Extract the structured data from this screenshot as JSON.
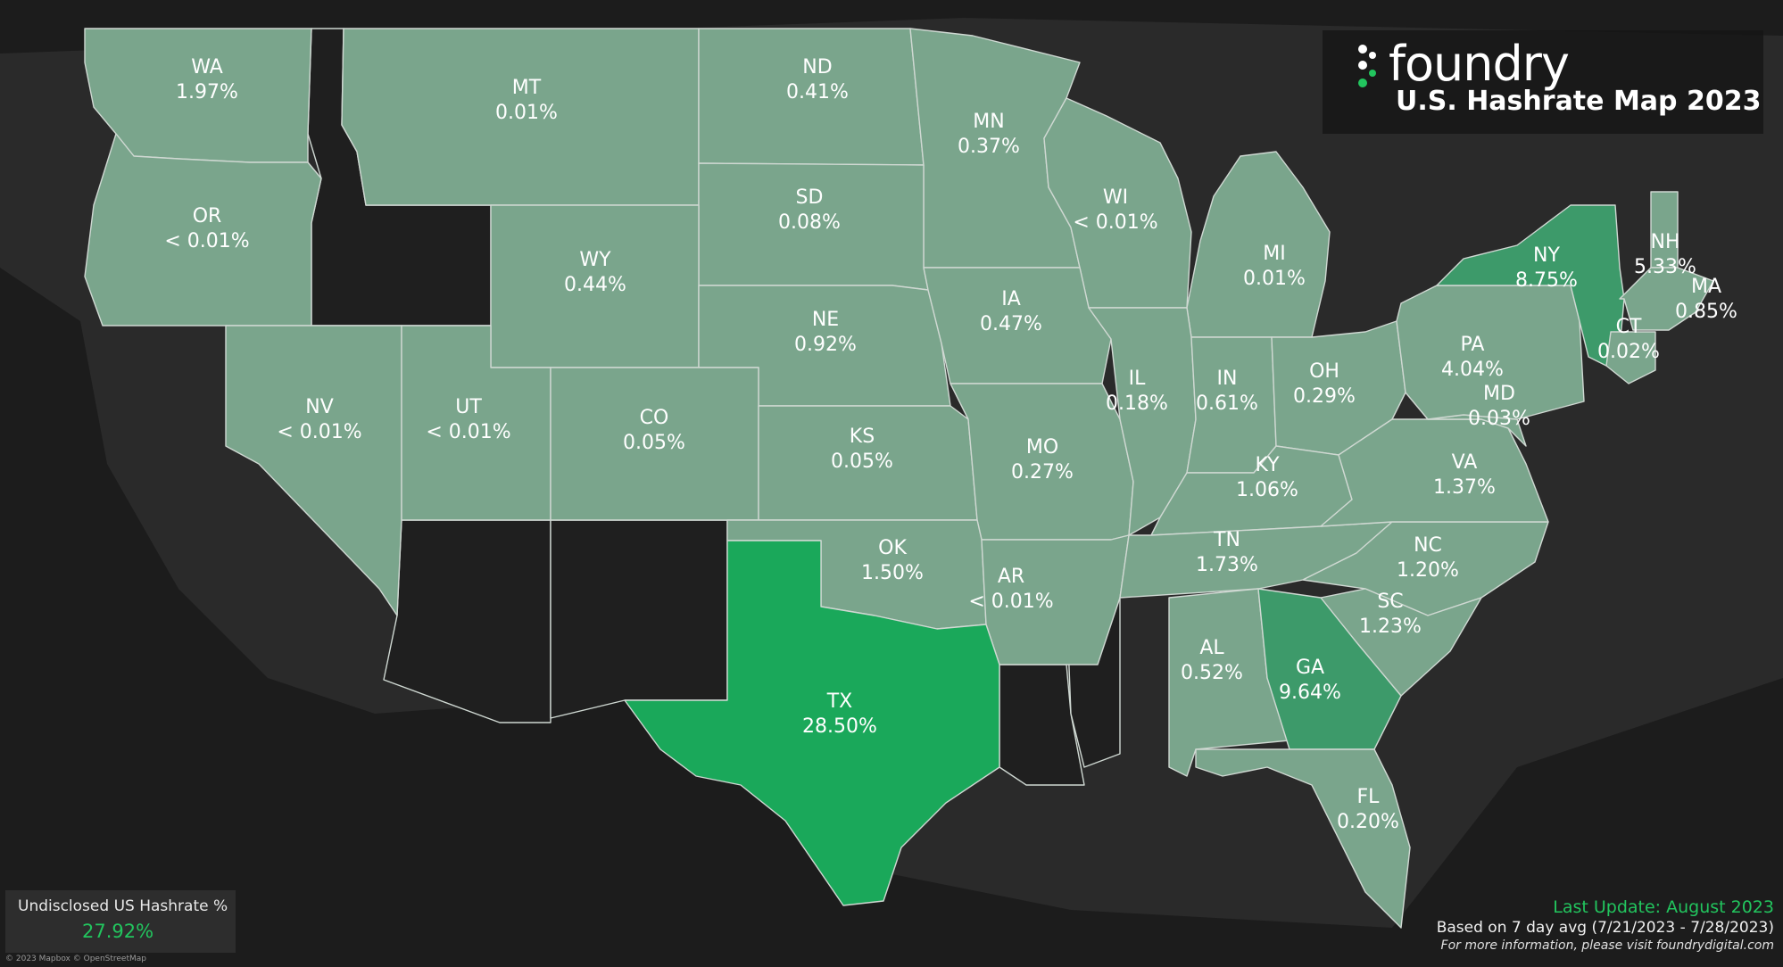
{
  "brand": {
    "name": "foundry",
    "title": "U.S. Hashrate Map 2023"
  },
  "undisclosed": {
    "label": "Undisclosed US Hashrate %",
    "value": "27.92%"
  },
  "footer": {
    "last_update": "Last Update: August 2023",
    "based_on": "Based on 7 day avg (7/21/2023 - 7/28/2023)",
    "more_info": "For more information, please visit foundrydigital.com"
  },
  "attribution": "© 2023 Mapbox © OpenStreetMap",
  "colors": {
    "base": "#7aa58c",
    "mid": "#3d9a6a",
    "high": "#1aa85a",
    "unshaded": "#1f1f1f",
    "accent": "#22c55e"
  },
  "states": [
    {
      "abbr": "WA",
      "value": "1.97%",
      "shade": "base"
    },
    {
      "abbr": "OR",
      "value": "< 0.01%",
      "shade": "base"
    },
    {
      "abbr": "MT",
      "value": "0.01%",
      "shade": "base"
    },
    {
      "abbr": "ND",
      "value": "0.41%",
      "shade": "base"
    },
    {
      "abbr": "MN",
      "value": "0.37%",
      "shade": "base"
    },
    {
      "abbr": "SD",
      "value": "0.08%",
      "shade": "base"
    },
    {
      "abbr": "WY",
      "value": "0.44%",
      "shade": "base"
    },
    {
      "abbr": "WI",
      "value": "< 0.01%",
      "shade": "base"
    },
    {
      "abbr": "MI",
      "value": "0.01%",
      "shade": "base"
    },
    {
      "abbr": "NE",
      "value": "0.92%",
      "shade": "base"
    },
    {
      "abbr": "IA",
      "value": "0.47%",
      "shade": "base"
    },
    {
      "abbr": "NV",
      "value": "< 0.01%",
      "shade": "base"
    },
    {
      "abbr": "UT",
      "value": "< 0.01%",
      "shade": "base"
    },
    {
      "abbr": "CO",
      "value": "0.05%",
      "shade": "base"
    },
    {
      "abbr": "KS",
      "value": "0.05%",
      "shade": "base"
    },
    {
      "abbr": "MO",
      "value": "0.27%",
      "shade": "base"
    },
    {
      "abbr": "IL",
      "value": "0.18%",
      "shade": "base"
    },
    {
      "abbr": "IN",
      "value": "0.61%",
      "shade": "base"
    },
    {
      "abbr": "OH",
      "value": "0.29%",
      "shade": "base"
    },
    {
      "abbr": "KY",
      "value": "1.06%",
      "shade": "base"
    },
    {
      "abbr": "OK",
      "value": "1.50%",
      "shade": "base"
    },
    {
      "abbr": "AR",
      "value": "< 0.01%",
      "shade": "base"
    },
    {
      "abbr": "TX",
      "value": "28.50%",
      "shade": "high"
    },
    {
      "abbr": "TN",
      "value": "1.73%",
      "shade": "base"
    },
    {
      "abbr": "NC",
      "value": "1.20%",
      "shade": "base"
    },
    {
      "abbr": "SC",
      "value": "1.23%",
      "shade": "base"
    },
    {
      "abbr": "AL",
      "value": "0.52%",
      "shade": "base"
    },
    {
      "abbr": "GA",
      "value": "9.64%",
      "shade": "mid"
    },
    {
      "abbr": "FL",
      "value": "0.20%",
      "shade": "base"
    },
    {
      "abbr": "VA",
      "value": "1.37%",
      "shade": "base"
    },
    {
      "abbr": "MD",
      "value": "0.03%",
      "shade": "base"
    },
    {
      "abbr": "PA",
      "value": "4.04%",
      "shade": "base"
    },
    {
      "abbr": "NY",
      "value": "8.75%",
      "shade": "mid"
    },
    {
      "abbr": "NH",
      "value": "5.33%",
      "shade": "base"
    },
    {
      "abbr": "MA",
      "value": "0.85%",
      "shade": "base"
    },
    {
      "abbr": "CT",
      "value": "0.02%",
      "shade": "base"
    }
  ]
}
